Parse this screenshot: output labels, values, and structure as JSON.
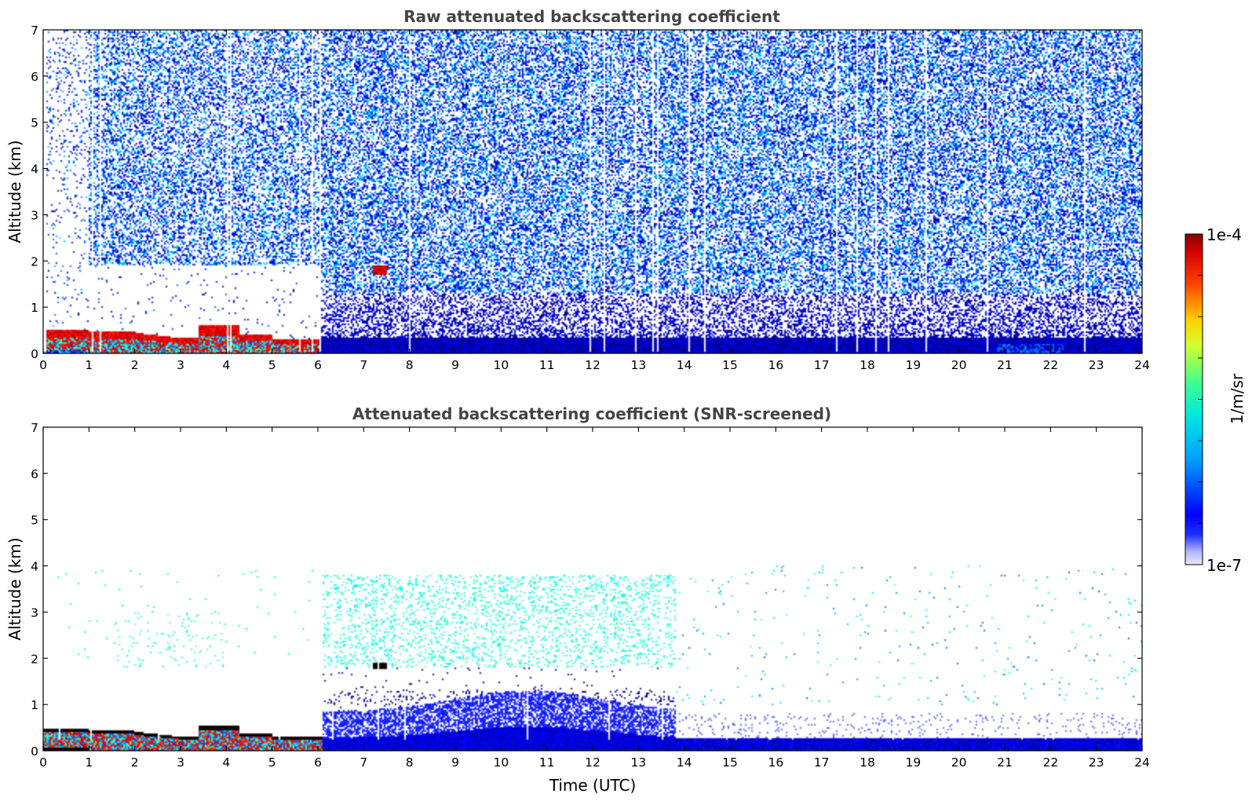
{
  "chart_data": [
    {
      "type": "heatmap",
      "title": "Raw attenuated backscattering coefficient",
      "xlabel": "",
      "ylabel": "Altitude (km)",
      "xlim": [
        0,
        24
      ],
      "ylim": [
        0,
        7
      ],
      "xticks": [
        "0",
        "1",
        "2",
        "3",
        "4",
        "5",
        "6",
        "7",
        "8",
        "9",
        "10",
        "11",
        "12",
        "13",
        "14",
        "15",
        "16",
        "17",
        "18",
        "19",
        "20",
        "21",
        "22",
        "23",
        "24"
      ],
      "yticks": [
        "0",
        "1",
        "2",
        "3",
        "4",
        "5",
        "6",
        "7"
      ],
      "x_unit": "hours UTC",
      "y_unit": "km",
      "color_scale": "log",
      "features": [
        {
          "time_range": [
            0,
            6.1
          ],
          "altitude_range": [
            0.1,
            0.6
          ],
          "level": "high (1e-5 to 1e-4)",
          "description": "boundary layer / low cloud"
        },
        {
          "time_range": [
            0,
            1.0
          ],
          "altitude_range": [
            1.0,
            7.0
          ],
          "level": "sparse noise",
          "description": "low-noise region"
        },
        {
          "time_range": [
            1.0,
            6.0
          ],
          "altitude_range": [
            0.6,
            2.0
          ],
          "level": "very sparse",
          "description": "clear air"
        },
        {
          "time_range": [
            7.2,
            7.5
          ],
          "altitude_range": [
            1.7,
            1.9
          ],
          "level": "high",
          "description": "small cloud"
        },
        {
          "time_range": [
            6.1,
            24
          ],
          "altitude_range": [
            0,
            0.4
          ],
          "level": "moderate (~1e-6)",
          "description": "near-surface aerosol layer"
        },
        {
          "time_range": [
            20.8,
            22.3
          ],
          "altitude_range": [
            0.05,
            0.25
          ],
          "level": "moderate-high",
          "description": "denser aerosol patch"
        },
        {
          "time_range": [
            1.0,
            24
          ],
          "altitude_range": [
            2.0,
            7.0
          ],
          "level": "background noise (2e-7 to 5e-6)",
          "description": "noise"
        }
      ]
    },
    {
      "type": "heatmap",
      "title": "Attenuated backscattering coefficient (SNR-screened)",
      "xlabel": "Time (UTC)",
      "ylabel": "Altitude (km)",
      "xlim": [
        0,
        24
      ],
      "ylim": [
        0,
        7
      ],
      "xticks": [
        "0",
        "1",
        "2",
        "3",
        "4",
        "5",
        "6",
        "7",
        "8",
        "9",
        "10",
        "11",
        "12",
        "13",
        "14",
        "15",
        "16",
        "17",
        "18",
        "19",
        "20",
        "21",
        "22",
        "23",
        "24"
      ],
      "yticks": [
        "0",
        "1",
        "2",
        "3",
        "4",
        "5",
        "6",
        "7"
      ],
      "x_unit": "hours UTC",
      "y_unit": "km",
      "color_scale": "log",
      "features": [
        {
          "time_range": [
            0,
            6.1
          ],
          "altitude_range": [
            0.05,
            0.55
          ],
          "level": "high, with black saturated edges",
          "description": "boundary layer / low cloud"
        },
        {
          "time_range": [
            6.1,
            13.8
          ],
          "altitude_range": [
            0,
            1.0
          ],
          "level": "low-moderate",
          "description": "aerosol layer"
        },
        {
          "time_range": [
            13.8,
            24
          ],
          "altitude_range": [
            0.05,
            0.3
          ],
          "level": "moderate",
          "description": "shallow aerosol layer"
        },
        {
          "time_range": [
            7.2,
            7.5
          ],
          "altitude_range": [
            1.75,
            1.9
          ],
          "level": "saturated",
          "description": "small cloud"
        },
        {
          "time_range": [
            6.5,
            13.8
          ],
          "altitude_range": [
            1.8,
            3.8
          ],
          "level": "sparse ~3e-6",
          "description": "elevated layer"
        },
        {
          "time_range": [
            1.5,
            4.0
          ],
          "altitude_range": [
            1.8,
            3.0
          ],
          "level": "sparse",
          "description": "elevated layer"
        }
      ]
    }
  ],
  "colorbar": {
    "max_label": "1e-4",
    "min_label": "1e-7",
    "unit_label": "1/m/sr",
    "scale": "log",
    "colormap": "jet"
  },
  "colors": {
    "frame": "#000000",
    "title": "#444444",
    "background": "#ffffff"
  }
}
